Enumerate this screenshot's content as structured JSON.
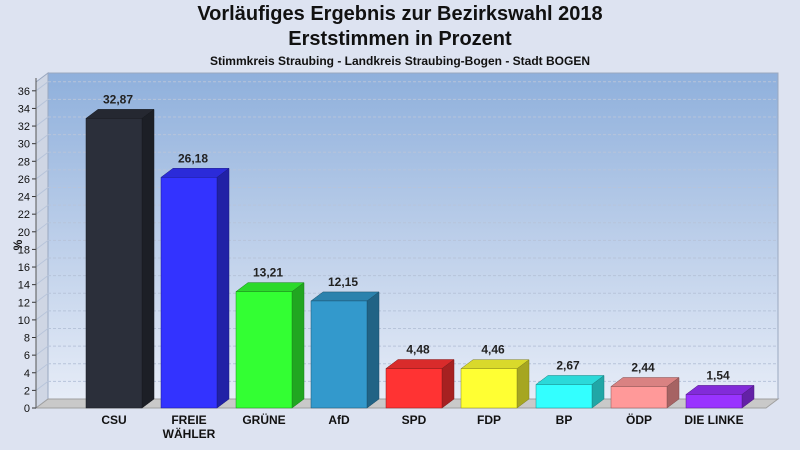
{
  "chart_data": {
    "type": "bar",
    "title": "Vorläufiges Ergebnis zur Bezirkswahl 2018",
    "subtitle": "Erststimmen in Prozent",
    "subtitle2": "Stimmkreis Straubing - Landkreis Straubing-Bogen - Stadt BOGEN",
    "ylabel": "%",
    "xlabel": "",
    "ylim": [
      0,
      37
    ],
    "yticks": [
      "0",
      "2",
      "4",
      "6",
      "8",
      "10",
      "12",
      "14",
      "16",
      "18",
      "20",
      "22",
      "24",
      "26",
      "28",
      "30",
      "32",
      "34",
      "36"
    ],
    "grid": true,
    "categories": [
      "CSU",
      "FREIE WÄHLER",
      "GRÜNE",
      "AfD",
      "SPD",
      "FDP",
      "BP",
      "ÖDP",
      "DIE LINKE"
    ],
    "values": [
      32.87,
      26.18,
      13.21,
      12.15,
      4.48,
      4.46,
      2.67,
      2.44,
      1.54
    ],
    "value_labels": [
      "32,87",
      "26,18",
      "13,21",
      "12,15",
      "4,48",
      "4,46",
      "2,67",
      "2,44",
      "1,54"
    ],
    "colors": [
      "#2b2f3a",
      "#3333ff",
      "#33ff33",
      "#3399cc",
      "#ff3333",
      "#ffff33",
      "#33ffff",
      "#ff9999",
      "#9933ff"
    ]
  }
}
